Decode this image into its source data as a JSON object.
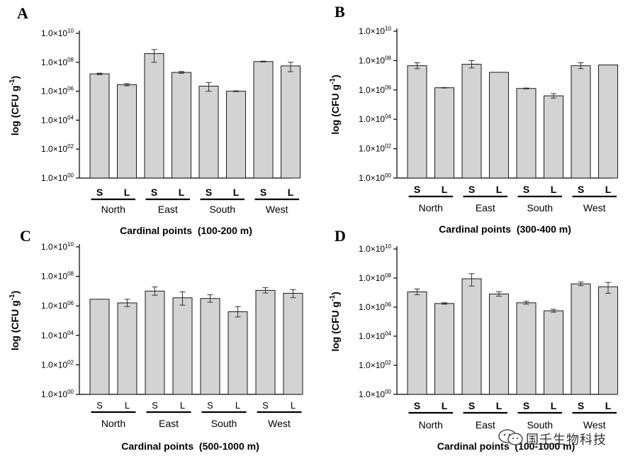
{
  "chart_data": [
    {
      "panel": "A",
      "type": "bar",
      "scale": "log10",
      "ylabel": "log (CFU g",
      "ylabel_superscript": "-1",
      "ylabel_close": ")",
      "xlabel": "Cardinal points  (100-200 m)",
      "bold_bar_labels": true,
      "y_ticks": [
        "1.0×10|00",
        "1.0×10|02",
        "1.0×10|04",
        "1.0×10|06",
        "1.0×10|08",
        "1.0×10|10"
      ],
      "ylim": [
        0,
        10
      ],
      "groups": [
        "North",
        "East",
        "South",
        "West"
      ],
      "categories": [
        "S",
        "L",
        "S",
        "L",
        "S",
        "L",
        "S",
        "L"
      ],
      "values": [
        7.2,
        6.45,
        8.6,
        7.3,
        6.35,
        6.0,
        8.05,
        7.75
      ],
      "err_low": [
        0.05,
        0.08,
        0.6,
        0.06,
        0.35,
        0.03,
        0.03,
        0.4
      ],
      "err_high": [
        0.05,
        0.08,
        0.28,
        0.06,
        0.25,
        0.03,
        0.03,
        0.25
      ]
    },
    {
      "panel": "B",
      "type": "bar",
      "scale": "log10",
      "ylabel": "log (CFU g",
      "ylabel_superscript": "-1",
      "ylabel_close": ")",
      "xlabel": "Cardinal points  (300-400 m)",
      "bold_bar_labels": true,
      "y_ticks": [
        "1.0×10|00",
        "1.0×10|02",
        "1.0×10|04",
        "1.0×10|06",
        "1.0×10|08",
        "1.0×10|10"
      ],
      "ylim": [
        0,
        10
      ],
      "groups": [
        "North",
        "East",
        "South",
        "West"
      ],
      "categories": [
        "S",
        "L",
        "S",
        "L",
        "S",
        "L",
        "S",
        "L"
      ],
      "values": [
        7.65,
        6.15,
        7.75,
        7.2,
        6.1,
        5.6,
        7.65,
        7.7
      ],
      "err_low": [
        0.2,
        0.02,
        0.25,
        0.0,
        0.03,
        0.15,
        0.2,
        0.0
      ],
      "err_high": [
        0.2,
        0.02,
        0.25,
        0.0,
        0.03,
        0.15,
        0.2,
        0.0
      ]
    },
    {
      "panel": "C",
      "type": "bar",
      "scale": "log10",
      "ylabel": "log (CFU g",
      "ylabel_superscript": "-1",
      "ylabel_close": ")",
      "xlabel": "Cardinal points  (500-1000 m)",
      "bold_bar_labels": false,
      "y_ticks": [
        "1.0×10|00",
        "1.0×10|02",
        "1.0×10|04",
        "1.0×10|06",
        "1.0×10|08",
        "1.0×10|10"
      ],
      "ylim": [
        0,
        10
      ],
      "groups": [
        "North",
        "East",
        "South",
        "West"
      ],
      "categories": [
        "S",
        "L",
        "S",
        "L",
        "S",
        "L",
        "S",
        "L"
      ],
      "values": [
        6.45,
        6.2,
        7.0,
        6.55,
        6.5,
        5.6,
        7.05,
        6.85
      ],
      "err_low": [
        0.0,
        0.25,
        0.28,
        0.5,
        0.25,
        0.35,
        0.18,
        0.3
      ],
      "err_high": [
        0.0,
        0.25,
        0.28,
        0.4,
        0.25,
        0.35,
        0.18,
        0.25
      ]
    },
    {
      "panel": "D",
      "type": "bar",
      "scale": "log10",
      "ylabel": "log (CFU g",
      "ylabel_superscript": "-1",
      "ylabel_close": ")",
      "xlabel": "Cardinal points  (100-1000 m)",
      "bold_bar_labels": true,
      "y_ticks": [
        "1.0×10|00",
        "1.0×10|02",
        "1.0×10|04",
        "1.0×10|06",
        "1.0×10|08",
        "1.0×10|10"
      ],
      "ylim": [
        0,
        10
      ],
      "groups": [
        "North",
        "East",
        "South",
        "West"
      ],
      "categories": [
        "S",
        "L",
        "S",
        "L",
        "S",
        "L",
        "S",
        "L"
      ],
      "values": [
        7.05,
        6.25,
        7.95,
        6.9,
        6.3,
        5.75,
        7.6,
        7.4
      ],
      "err_low": [
        0.2,
        0.05,
        0.5,
        0.15,
        0.1,
        0.1,
        0.12,
        0.45
      ],
      "err_high": [
        0.2,
        0.05,
        0.35,
        0.15,
        0.1,
        0.1,
        0.12,
        0.3
      ]
    }
  ],
  "watermark": {
    "text": "国壬生物科技",
    "logo_icon": "wechat-logo-icon"
  }
}
